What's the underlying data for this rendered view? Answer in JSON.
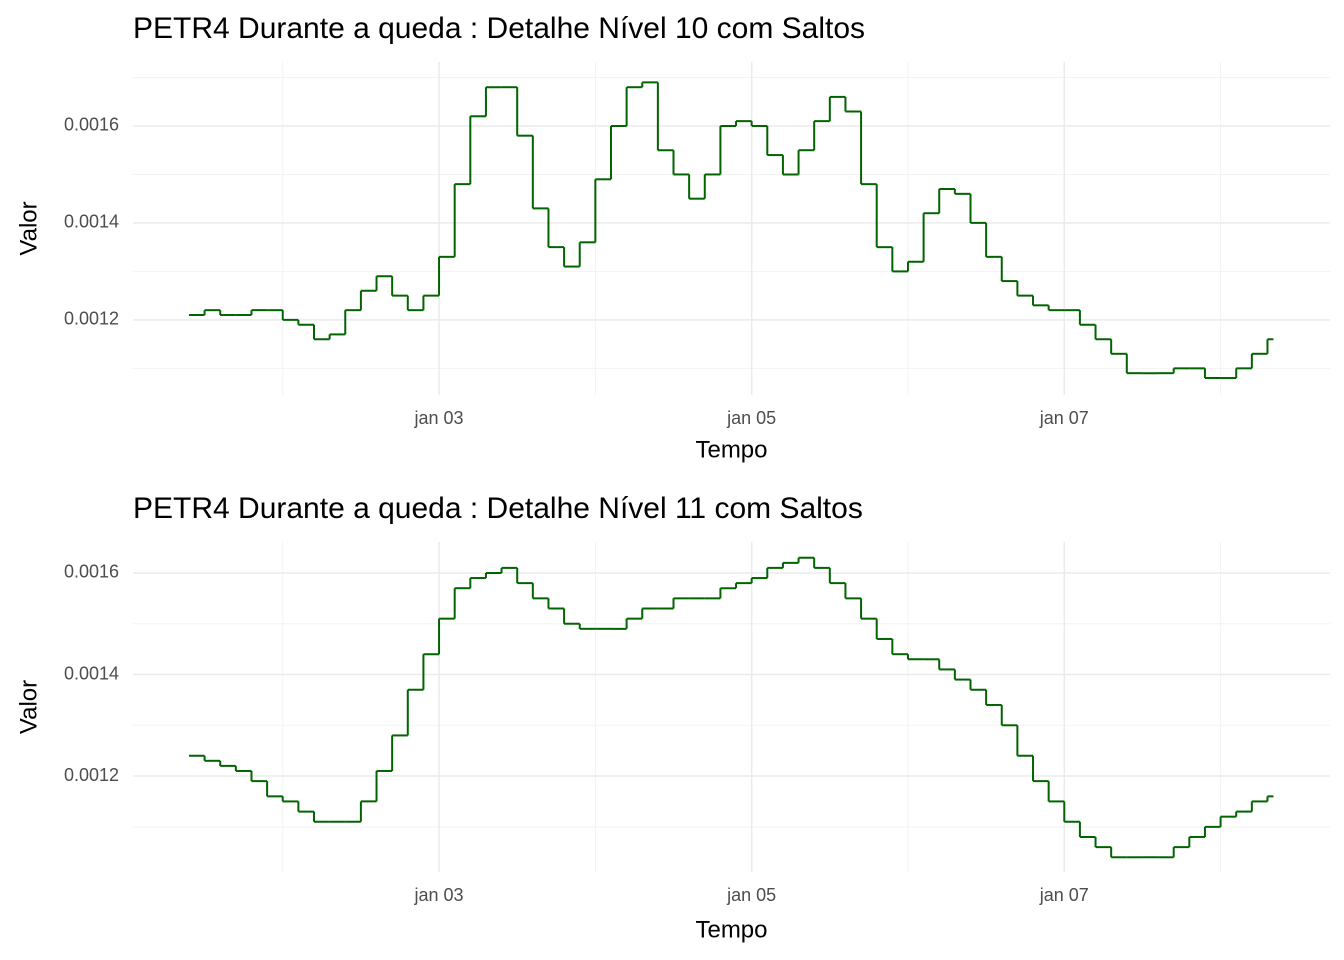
{
  "chart_data": [
    {
      "type": "step",
      "title": "PETR4 Durante a queda : Detalhe Nível 10 com Saltos",
      "x_label": "Tempo",
      "y_label": "Valor",
      "x": [
        1.4,
        1.5,
        1.6,
        1.7,
        1.8,
        1.9,
        2.0,
        2.1,
        2.2,
        2.3,
        2.4,
        2.5,
        2.6,
        2.7,
        2.8,
        2.9,
        3.0,
        3.1,
        3.2,
        3.3,
        3.4,
        3.5,
        3.6,
        3.7,
        3.8,
        3.9,
        4.0,
        4.1,
        4.2,
        4.3,
        4.4,
        4.5,
        4.6,
        4.7,
        4.8,
        4.9,
        5.0,
        5.1,
        5.2,
        5.3,
        5.4,
        5.5,
        5.6,
        5.7,
        5.8,
        5.9,
        6.0,
        6.1,
        6.2,
        6.3,
        6.4,
        6.5,
        6.6,
        6.7,
        6.8,
        6.9,
        7.0,
        7.1,
        7.2,
        7.3,
        7.4,
        7.5,
        7.6,
        7.7,
        7.8,
        7.9,
        8.0,
        8.1,
        8.2,
        8.3
      ],
      "series": [
        {
          "color": "#006400",
          "values": [
            0.00121,
            0.00122,
            0.00121,
            0.00121,
            0.00122,
            0.00122,
            0.0012,
            0.00119,
            0.00116,
            0.00117,
            0.00122,
            0.00126,
            0.00129,
            0.00125,
            0.00122,
            0.00125,
            0.00133,
            0.00148,
            0.00162,
            0.00168,
            0.00168,
            0.00158,
            0.00143,
            0.00135,
            0.00131,
            0.00136,
            0.00149,
            0.0016,
            0.00168,
            0.00169,
            0.00155,
            0.0015,
            0.00145,
            0.0015,
            0.0016,
            0.00161,
            0.0016,
            0.00154,
            0.0015,
            0.00155,
            0.00161,
            0.00166,
            0.00163,
            0.00148,
            0.00135,
            0.0013,
            0.00132,
            0.00142,
            0.00147,
            0.00146,
            0.0014,
            0.00133,
            0.00128,
            0.00125,
            0.00123,
            0.00122,
            0.00122,
            0.00119,
            0.00116,
            0.00113,
            0.00109,
            0.00109,
            0.00109,
            0.0011,
            0.0011,
            0.00108,
            0.00108,
            0.0011,
            0.00113,
            0.00116
          ]
        }
      ],
      "xlim": [
        1.042,
        8.7
      ],
      "xticks": [
        {
          "value": 3,
          "label": "jan 03"
        },
        {
          "value": 5,
          "label": "jan 05"
        },
        {
          "value": 7,
          "label": "jan 07"
        }
      ],
      "x_minor_ticks": [
        2,
        4,
        6,
        8
      ],
      "ylim": [
        0.001045,
        0.001732
      ],
      "yticks": [
        0.0012,
        0.0014,
        0.0016
      ],
      "y_minor_ticks": [
        0.0011,
        0.0013,
        0.0015,
        0.0017
      ],
      "grid": true
    },
    {
      "type": "step",
      "title": "PETR4 Durante a queda : Detalhe Nível 11 com Saltos",
      "x_label": "Tempo",
      "y_label": "Valor",
      "x": [
        1.4,
        1.5,
        1.6,
        1.7,
        1.8,
        1.9,
        2.0,
        2.1,
        2.2,
        2.3,
        2.4,
        2.5,
        2.6,
        2.7,
        2.8,
        2.9,
        3.0,
        3.1,
        3.2,
        3.3,
        3.4,
        3.5,
        3.6,
        3.7,
        3.8,
        3.9,
        4.0,
        4.1,
        4.2,
        4.3,
        4.4,
        4.5,
        4.6,
        4.7,
        4.8,
        4.9,
        5.0,
        5.1,
        5.2,
        5.3,
        5.4,
        5.5,
        5.6,
        5.7,
        5.8,
        5.9,
        6.0,
        6.1,
        6.2,
        6.3,
        6.4,
        6.5,
        6.6,
        6.7,
        6.8,
        6.9,
        7.0,
        7.1,
        7.2,
        7.3,
        7.4,
        7.5,
        7.6,
        7.7,
        7.8,
        7.9,
        8.0,
        8.1,
        8.2,
        8.3
      ],
      "series": [
        {
          "color": "#006400",
          "values": [
            0.00124,
            0.00123,
            0.00122,
            0.00121,
            0.00119,
            0.00116,
            0.00115,
            0.00113,
            0.00111,
            0.00111,
            0.00111,
            0.00115,
            0.00121,
            0.00128,
            0.00137,
            0.00144,
            0.00151,
            0.00157,
            0.00159,
            0.0016,
            0.00161,
            0.00158,
            0.00155,
            0.00153,
            0.0015,
            0.00149,
            0.00149,
            0.00149,
            0.00151,
            0.00153,
            0.00153,
            0.00155,
            0.00155,
            0.00155,
            0.00157,
            0.00158,
            0.00159,
            0.00161,
            0.00162,
            0.00163,
            0.00161,
            0.00158,
            0.00155,
            0.00151,
            0.00147,
            0.00144,
            0.00143,
            0.00143,
            0.00141,
            0.00139,
            0.00137,
            0.00134,
            0.0013,
            0.00124,
            0.00119,
            0.00115,
            0.00111,
            0.00108,
            0.00106,
            0.00104,
            0.00104,
            0.00104,
            0.00104,
            0.00106,
            0.00108,
            0.0011,
            0.00112,
            0.00113,
            0.00115,
            0.00116
          ]
        }
      ],
      "xlim": [
        1.042,
        8.7
      ],
      "xticks": [
        {
          "value": 3,
          "label": "jan 03"
        },
        {
          "value": 5,
          "label": "jan 05"
        },
        {
          "value": 7,
          "label": "jan 07"
        }
      ],
      "x_minor_ticks": [
        2,
        4,
        6,
        8
      ],
      "ylim": [
        0.001011,
        0.001661
      ],
      "yticks": [
        0.0012,
        0.0014,
        0.0016
      ],
      "y_minor_ticks": [
        0.0011,
        0.0013,
        0.0015
      ],
      "grid": true
    }
  ]
}
